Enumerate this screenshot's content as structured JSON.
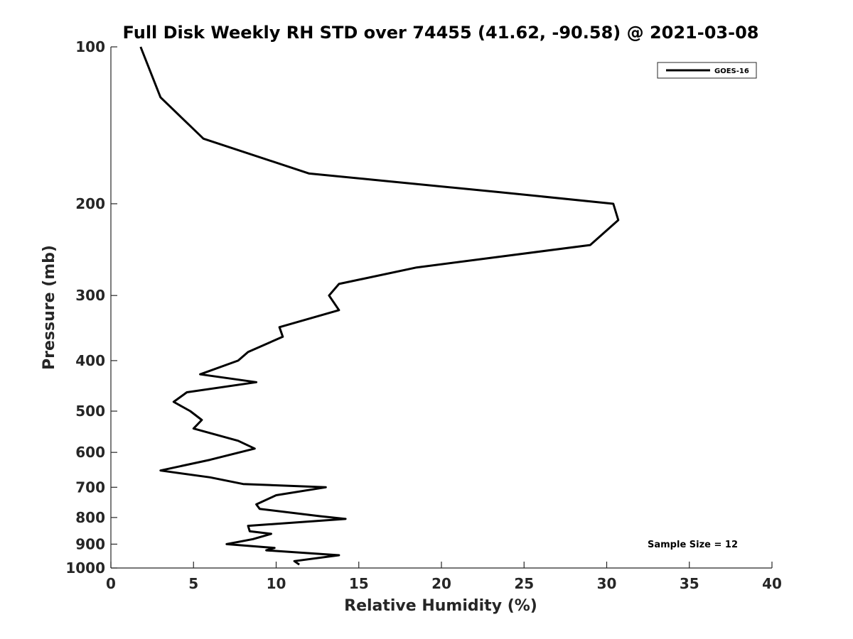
{
  "chart_data": {
    "type": "line",
    "title": "Full Disk Weekly RH STD over 74455 (41.62, -90.58) @ 2021-03-08",
    "xlabel": "Relative Humidity (%)",
    "ylabel": "Pressure (mb)",
    "xlim": [
      0,
      40
    ],
    "ylim": [
      1000,
      100
    ],
    "yscale": "log",
    "y_reversed": true,
    "grid": false,
    "legend_position": "top-right",
    "xticks": [
      "0",
      "5",
      "10",
      "15",
      "20",
      "25",
      "30",
      "35",
      "40"
    ],
    "yticks": [
      "100",
      "200",
      "300",
      "400",
      "500",
      "600",
      "700",
      "800",
      "900",
      "1000"
    ],
    "annotation": "Sample Size = 12",
    "series": [
      {
        "name": "GOES-16",
        "color": "#000000",
        "points": [
          [
            1.8,
            100
          ],
          [
            3.0,
            125
          ],
          [
            5.6,
            150
          ],
          [
            12.0,
            175
          ],
          [
            23.5,
            190
          ],
          [
            30.4,
            200
          ],
          [
            30.7,
            215
          ],
          [
            29.0,
            240
          ],
          [
            18.5,
            265
          ],
          [
            13.8,
            285
          ],
          [
            13.2,
            300
          ],
          [
            13.8,
            320
          ],
          [
            10.2,
            345
          ],
          [
            10.4,
            360
          ],
          [
            8.3,
            385
          ],
          [
            7.7,
            400
          ],
          [
            5.4,
            425
          ],
          [
            8.8,
            440
          ],
          [
            4.6,
            460
          ],
          [
            3.8,
            480
          ],
          [
            4.8,
            500
          ],
          [
            5.5,
            520
          ],
          [
            5.0,
            540
          ],
          [
            7.7,
            570
          ],
          [
            8.7,
            590
          ],
          [
            6.0,
            620
          ],
          [
            3.0,
            650
          ],
          [
            6.0,
            670
          ],
          [
            8.0,
            690
          ],
          [
            13.0,
            700
          ],
          [
            10.0,
            725
          ],
          [
            8.8,
            755
          ],
          [
            9.0,
            770
          ],
          [
            12.6,
            795
          ],
          [
            14.2,
            805
          ],
          [
            8.3,
            830
          ],
          [
            8.4,
            850
          ],
          [
            9.7,
            860
          ],
          [
            8.6,
            880
          ],
          [
            7.0,
            900
          ],
          [
            9.9,
            915
          ],
          [
            9.4,
            925
          ],
          [
            13.8,
            945
          ],
          [
            11.1,
            970
          ],
          [
            11.4,
            985
          ]
        ]
      }
    ]
  }
}
